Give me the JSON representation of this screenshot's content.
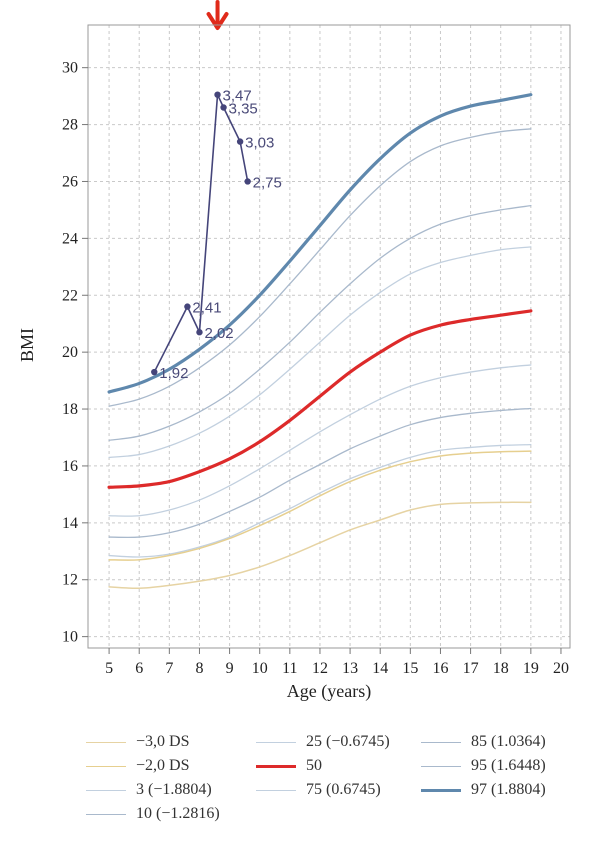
{
  "chart_data": {
    "type": "line",
    "title": "",
    "xlabel": "Age (years)",
    "ylabel": "BMI",
    "xlim": [
      4.3,
      20.3
    ],
    "ylim": [
      9.6,
      31.5
    ],
    "x_ticks": [
      5,
      6,
      7,
      8,
      9,
      10,
      11,
      12,
      13,
      14,
      15,
      16,
      17,
      18,
      19,
      20
    ],
    "y_ticks": [
      10,
      12,
      14,
      16,
      18,
      20,
      22,
      24,
      26,
      28,
      30
    ],
    "grid": true,
    "legend_position": "bottom",
    "x": [
      5,
      6,
      7,
      8,
      9,
      10,
      11,
      12,
      13,
      14,
      15,
      16,
      17,
      18,
      19
    ],
    "series": [
      {
        "name": "−3,0 DS",
        "color": "#e6d3a3",
        "width": 1.5,
        "values": [
          11.75,
          11.7,
          11.8,
          11.95,
          12.15,
          12.45,
          12.85,
          13.3,
          13.75,
          14.1,
          14.45,
          14.65,
          14.7,
          14.72,
          14.72
        ]
      },
      {
        "name": "−2,0 DS",
        "color": "#e6cf8f",
        "width": 1.5,
        "values": [
          12.7,
          12.7,
          12.85,
          13.1,
          13.45,
          13.9,
          14.4,
          14.95,
          15.45,
          15.85,
          16.15,
          16.35,
          16.45,
          16.5,
          16.52
        ]
      },
      {
        "name": "3 (−1.8804)",
        "color": "#c2d0df",
        "width": 1.3,
        "values": [
          12.85,
          12.8,
          12.9,
          13.15,
          13.5,
          14.0,
          14.5,
          15.05,
          15.55,
          15.95,
          16.3,
          16.55,
          16.65,
          16.72,
          16.75
        ]
      },
      {
        "name": "10 (−1.2816)",
        "color": "#a9b9cc",
        "width": 1.3,
        "values": [
          13.5,
          13.5,
          13.65,
          13.95,
          14.4,
          14.9,
          15.5,
          16.05,
          16.6,
          17.05,
          17.45,
          17.7,
          17.85,
          17.95,
          18.02
        ]
      },
      {
        "name": "25 (−0.6745)",
        "color": "#c2d0df",
        "width": 1.3,
        "values": [
          14.25,
          14.25,
          14.45,
          14.8,
          15.3,
          15.9,
          16.55,
          17.2,
          17.8,
          18.35,
          18.8,
          19.1,
          19.3,
          19.45,
          19.55
        ]
      },
      {
        "name": "50",
        "color": "#dd2a2a",
        "width": 3.2,
        "values": [
          15.25,
          15.3,
          15.45,
          15.8,
          16.25,
          16.85,
          17.6,
          18.45,
          19.3,
          20.0,
          20.6,
          20.95,
          21.15,
          21.3,
          21.45
        ]
      },
      {
        "name": "75 (0.6745)",
        "color": "#c2d0df",
        "width": 1.3,
        "values": [
          16.3,
          16.4,
          16.7,
          17.15,
          17.75,
          18.5,
          19.4,
          20.35,
          21.3,
          22.1,
          22.75,
          23.15,
          23.4,
          23.6,
          23.7
        ]
      },
      {
        "name": "85 (1.0364)",
        "color": "#a9b9cc",
        "width": 1.3,
        "values": [
          16.9,
          17.05,
          17.4,
          17.9,
          18.55,
          19.4,
          20.35,
          21.4,
          22.4,
          23.3,
          24.0,
          24.5,
          24.8,
          25.0,
          25.15
        ]
      },
      {
        "name": "95 (1.6448)",
        "color": "#a9b9cc",
        "width": 1.3,
        "values": [
          18.1,
          18.35,
          18.8,
          19.45,
          20.25,
          21.25,
          22.4,
          23.6,
          24.8,
          25.85,
          26.7,
          27.25,
          27.55,
          27.75,
          27.85
        ]
      },
      {
        "name": "97 (1.8804)",
        "color": "#5f88ad",
        "width": 3.2,
        "values": [
          18.6,
          18.9,
          19.4,
          20.1,
          20.95,
          22.0,
          23.2,
          24.45,
          25.7,
          26.8,
          27.7,
          28.3,
          28.65,
          28.85,
          29.05
        ]
      }
    ],
    "patient": {
      "name": "",
      "color": "#45457a",
      "points": [
        {
          "x": 6.5,
          "y": 19.3,
          "label": "1,92"
        },
        {
          "x": 7.6,
          "y": 21.6,
          "label": "2,41"
        },
        {
          "x": 8.0,
          "y": 20.7,
          "label": "2,02"
        },
        {
          "x": 8.6,
          "y": 29.05,
          "label": "3,47"
        },
        {
          "x": 8.8,
          "y": 28.6,
          "label": "3,35"
        },
        {
          "x": 9.35,
          "y": 27.4,
          "label": "3,03"
        },
        {
          "x": 9.6,
          "y": 26.0,
          "label": "2,75"
        }
      ]
    },
    "arrow": {
      "x": 8.6,
      "color": "#e02a1a"
    }
  },
  "legend": {
    "entries": [
      {
        "label": "−3,0 DS",
        "series_index": 0
      },
      {
        "label": "−2,0 DS",
        "series_index": 1
      },
      {
        "label": "3 (−1.8804)",
        "series_index": 2
      },
      {
        "label": "10 (−1.2816)",
        "series_index": 3
      },
      {
        "label": "25 (−0.6745)",
        "series_index": 4
      },
      {
        "label": "50",
        "series_index": 5
      },
      {
        "label": "75 (0.6745)",
        "series_index": 6
      },
      {
        "label": "85 (1.0364)",
        "series_index": 7
      },
      {
        "label": "95 (1.6448)",
        "series_index": 8
      },
      {
        "label": "97 (1.8804)",
        "series_index": 9
      }
    ]
  }
}
